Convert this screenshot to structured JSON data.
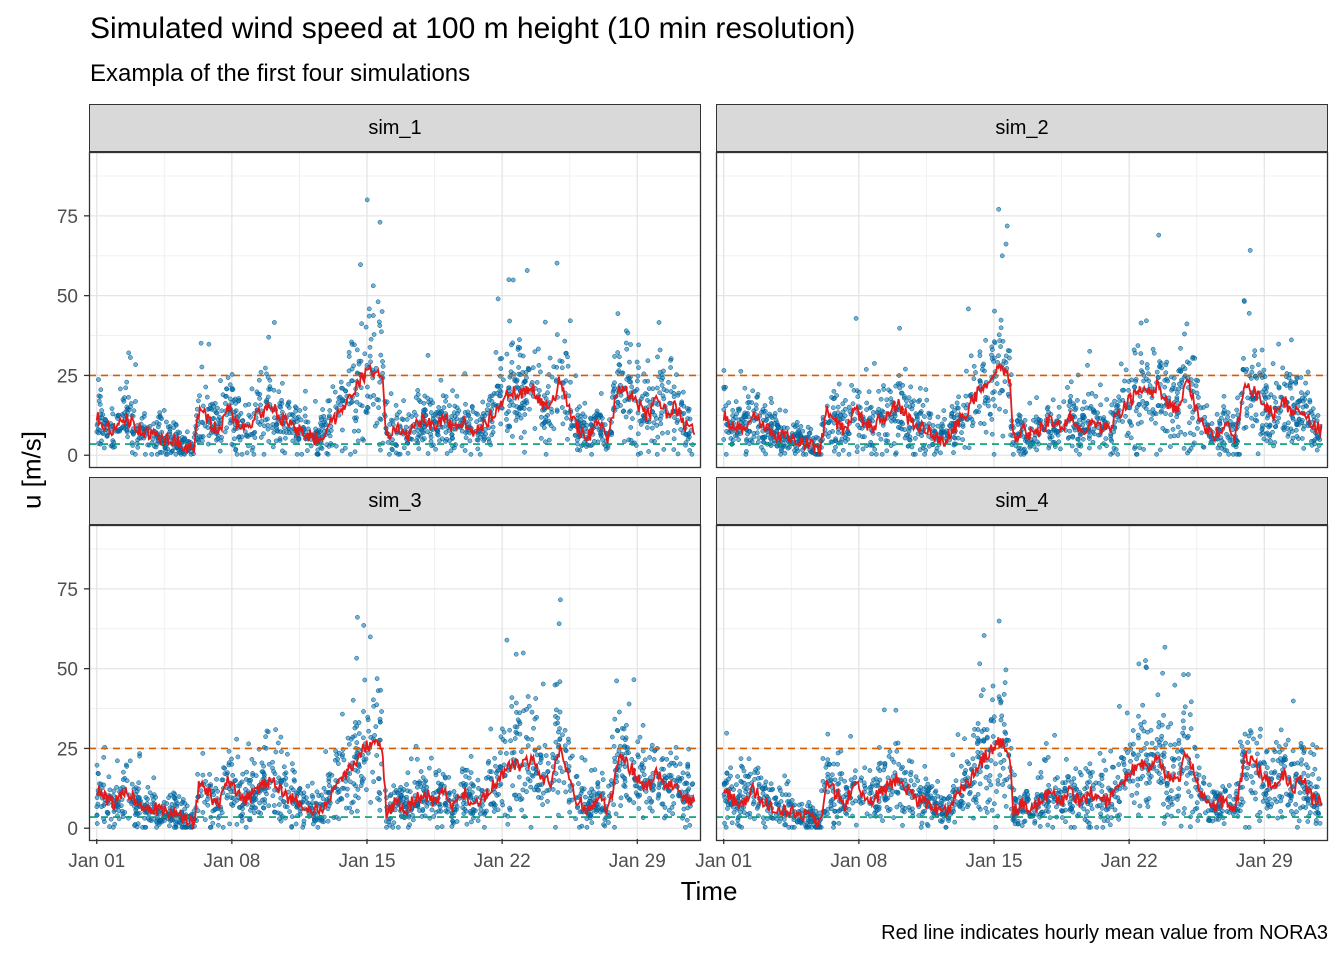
{
  "chart_data": {
    "type": "scatter",
    "title": "Simulated wind speed at 100 m height (10 min resolution)",
    "subtitle": "Exampla of the first four simulations",
    "xlabel": "Time",
    "ylabel": "u [m/s]",
    "caption": "Red line indicates hourly mean value from NORA3",
    "x_ticks": [
      "Jan 01",
      "Jan 08",
      "Jan 15",
      "Jan 22",
      "Jan 29"
    ],
    "x_tick_days": [
      1,
      8,
      15,
      22,
      29
    ],
    "xlim_days": [
      0.6,
      32.3
    ],
    "y_ticks": [
      0,
      25,
      50,
      75
    ],
    "ylim": [
      -4,
      95
    ],
    "grid": true,
    "point_color": "#0072B2",
    "mean_line_color": "#E31A1C",
    "reference_lines": [
      {
        "y": 25,
        "color": "#D55E00",
        "style": "dashed"
      },
      {
        "y": 3.5,
        "color": "#009E73",
        "style": "dashed"
      }
    ],
    "hourly_mean_profile": {
      "day": [
        1,
        1.5,
        2,
        2.5,
        3,
        3.5,
        4,
        4.5,
        5,
        5.5,
        6,
        6.3,
        6.8,
        7.3,
        7.8,
        8.3,
        8.8,
        9.3,
        10,
        10.5,
        11,
        11.5,
        12,
        12.5,
        13,
        13.5,
        14,
        14.5,
        15,
        15.5,
        15.8,
        16,
        16.5,
        17,
        17.5,
        18,
        18.5,
        19,
        19.5,
        20,
        20.5,
        21,
        21.5,
        22,
        22.5,
        23,
        23.5,
        24,
        24.5,
        25,
        25.3,
        25.6,
        26,
        26.5,
        27,
        27.5,
        28,
        28.5,
        29,
        29.5,
        30,
        30.5,
        31,
        31.5,
        32
      ],
      "value": [
        12,
        9,
        8,
        12,
        9,
        7,
        6,
        5,
        5,
        3,
        1,
        14,
        11,
        7,
        15,
        10,
        9,
        12,
        16,
        12,
        9,
        8,
        6,
        5,
        9,
        13,
        18,
        22,
        26,
        27,
        24,
        5,
        8,
        6,
        9,
        11,
        8,
        12,
        7,
        11,
        8,
        9,
        13,
        17,
        20,
        19,
        22,
        16,
        14,
        24,
        18,
        12,
        8,
        6,
        10,
        5,
        22,
        20,
        16,
        12,
        17,
        13,
        15,
        9,
        8
      ]
    },
    "panels": [
      {
        "name": "sim_1",
        "seed": 11
      },
      {
        "name": "sim_2",
        "seed": 23
      },
      {
        "name": "sim_3",
        "seed": 37
      },
      {
        "name": "sim_4",
        "seed": 51
      }
    ]
  }
}
